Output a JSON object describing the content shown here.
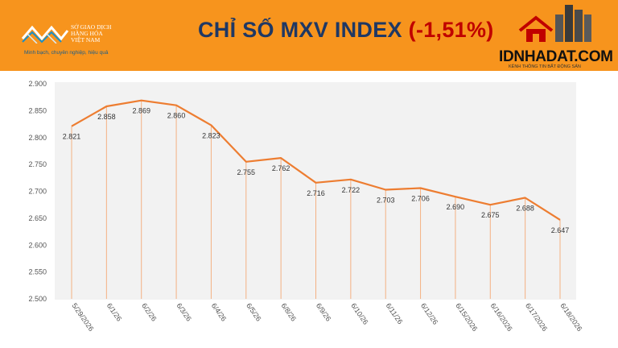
{
  "header": {
    "title_main": "CHỈ SỐ MXV INDEX",
    "title_change": "(-1,51%)",
    "left_logo": {
      "org_lines": [
        "SỞ GIAO DỊCH",
        "HÀNG HÓA",
        "VIỆT NAM"
      ],
      "slogan": "Minh bạch, chuyên nghiệp, hiệu quả"
    },
    "brand": {
      "name": "IDNHADAT.COM",
      "tagline": "KÊNH THÔNG TIN BẤT ĐỘNG SẢN"
    },
    "colors": {
      "background": "#f7941d",
      "title": "#1f3864",
      "change": "#c00000"
    }
  },
  "chart_data": {
    "type": "line",
    "categories": [
      "5/29/2026",
      "6/1/26",
      "6/2/26",
      "6/3/26",
      "6/4/26",
      "6/5/26",
      "6/8/26",
      "6/9/26",
      "6/10/26",
      "6/11/26",
      "6/12/26",
      "6/15/2026",
      "6/16/2026",
      "6/17/2026",
      "6/18/2026"
    ],
    "values": [
      2821,
      2858,
      2869,
      2860,
      2823,
      2755,
      2762,
      2716,
      2722,
      2703,
      2706,
      2690,
      2675,
      2688,
      2647
    ],
    "data_labels": [
      "2.821",
      "2.858",
      "2.869",
      "2.860",
      "2.823",
      "2.755",
      "2.762",
      "2.716",
      "2.722",
      "2.703",
      "2.706",
      "2.690",
      "2.675",
      "2.688",
      "2.647"
    ],
    "y_ticks": [
      "2.900",
      "2.850",
      "2.800",
      "2.750",
      "2.700",
      "2.650",
      "2.600",
      "2.550",
      "2.500"
    ],
    "y_tick_values": [
      2900,
      2850,
      2800,
      2750,
      2700,
      2650,
      2600,
      2550,
      2500
    ],
    "ylim": [
      2500,
      2900
    ],
    "grid": "drop lines",
    "legend": "none",
    "colors": {
      "line": "#ed7d31",
      "drop_lines": "#f4b183",
      "plot_background": "#f2f2f2"
    }
  }
}
